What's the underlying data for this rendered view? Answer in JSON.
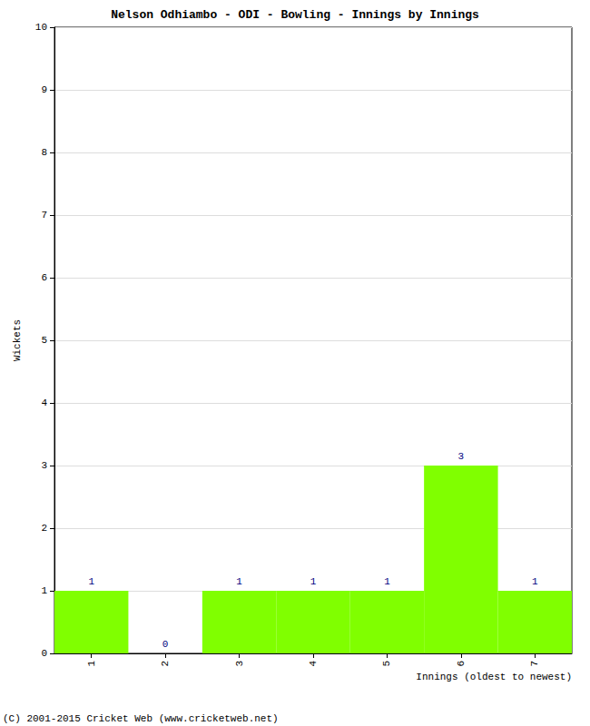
{
  "chart_data": {
    "type": "bar",
    "title": "Nelson Odhiambo - ODI - Bowling - Innings by Innings",
    "x_label": "Innings (oldest to newest)",
    "y_label": "Wickets",
    "categories": [
      "1",
      "2",
      "3",
      "4",
      "5",
      "6",
      "7"
    ],
    "values": [
      1,
      0,
      1,
      1,
      1,
      3,
      1
    ],
    "color": "#80ff00",
    "ylim": [
      0,
      10
    ],
    "yticks": [
      0,
      1,
      2,
      3,
      4,
      5,
      6,
      7,
      8,
      9,
      10
    ],
    "grid": true,
    "data_labels": true,
    "annotations": [
      "(C) 2001-2015 Cricket Web (www.cricketweb.net)"
    ]
  }
}
